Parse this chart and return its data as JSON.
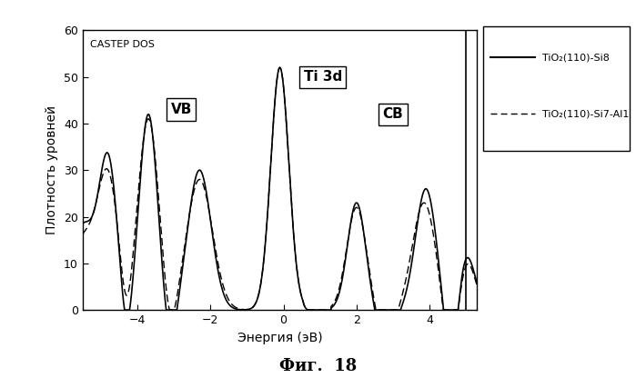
{
  "title": "CASTEP DOS",
  "xlabel": "Энергия (эВ)",
  "ylabel": "Плотность уровней",
  "fig_label": "Фиг.  18",
  "xlim": [
    -5.5,
    5.3
  ],
  "ylim": [
    0,
    60
  ],
  "yticks": [
    0,
    10,
    20,
    30,
    40,
    50,
    60
  ],
  "xticks": [
    -4,
    -2,
    0,
    2,
    4
  ],
  "legend_solid": "TiO₂(110)-Si8",
  "legend_dashed": "TiO₂(110)-Si7-Al1",
  "label_VB": "VB",
  "label_CB": "CB",
  "label_Ti3d": "Ti 3d",
  "background_color": "#ffffff",
  "line_color": "#000000"
}
